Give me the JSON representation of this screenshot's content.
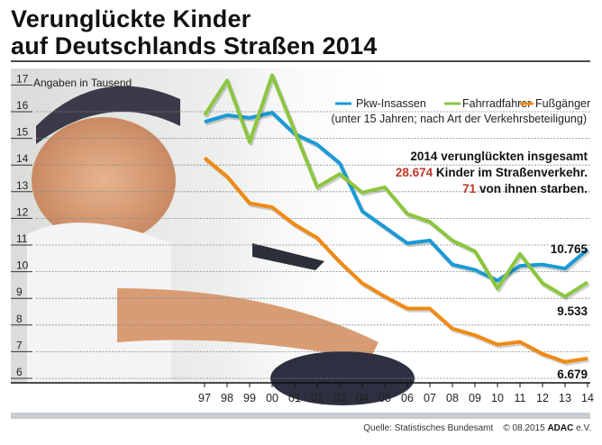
{
  "title_line1": "Verunglückte Kinder",
  "title_line2": "auf Deutschlands Straßen 2014",
  "source": "Quelle:  Statistisches Bundesamt",
  "copyright": "© 08.2015",
  "publisher": "ADAC",
  "publisher_suffix": "e.V.",
  "info": {
    "line1": "2014 verunglückten insgesamt",
    "total": "28.674",
    "line2": "Kinder im Straßenverkehr.",
    "deaths": "71",
    "line3": "von ihnen starben."
  },
  "chart_data": {
    "type": "line",
    "ylabel": "Angaben in Tausend",
    "legend_note": "(unter 15 Jahren; nach Art der Verkehrsbeteiligung)",
    "legend_position": "top-right",
    "ylim": [
      6,
      17
    ],
    "yticks": [
      6,
      7,
      8,
      9,
      10,
      11,
      12,
      13,
      14,
      15,
      16,
      17
    ],
    "categories": [
      "97",
      "98",
      "99",
      "00",
      "01",
      "02",
      "03",
      "04",
      "05",
      "06",
      "07",
      "08",
      "09",
      "10",
      "11",
      "12",
      "13",
      "14"
    ],
    "grid": true,
    "series": [
      {
        "name": "Pkw-Insassen",
        "color": "#1a9ad6",
        "end_label": "10.765",
        "values": [
          15.55,
          15.8,
          15.7,
          15.9,
          15.1,
          14.7,
          14.0,
          12.2,
          11.6,
          11.0,
          11.1,
          10.2,
          10.0,
          9.6,
          10.15,
          10.2,
          10.05,
          10.765
        ]
      },
      {
        "name": "Fahrradfahrer",
        "color": "#8cc63f",
        "end_label": "9.533",
        "values": [
          15.8,
          17.1,
          14.8,
          17.3,
          15.2,
          13.1,
          13.6,
          12.9,
          13.1,
          12.1,
          11.8,
          11.1,
          10.7,
          9.3,
          10.6,
          9.5,
          9.0,
          9.533
        ]
      },
      {
        "name": "Fußgänger",
        "color": "#f08a12",
        "end_label": "6.679",
        "values": [
          14.2,
          13.5,
          12.5,
          12.35,
          11.7,
          11.2,
          10.3,
          9.5,
          9.0,
          8.55,
          8.55,
          7.8,
          7.55,
          7.2,
          7.3,
          6.85,
          6.55,
          6.679
        ]
      }
    ]
  },
  "colors": {
    "highlight": "#c0392b",
    "bar": "#c8cdd2"
  }
}
